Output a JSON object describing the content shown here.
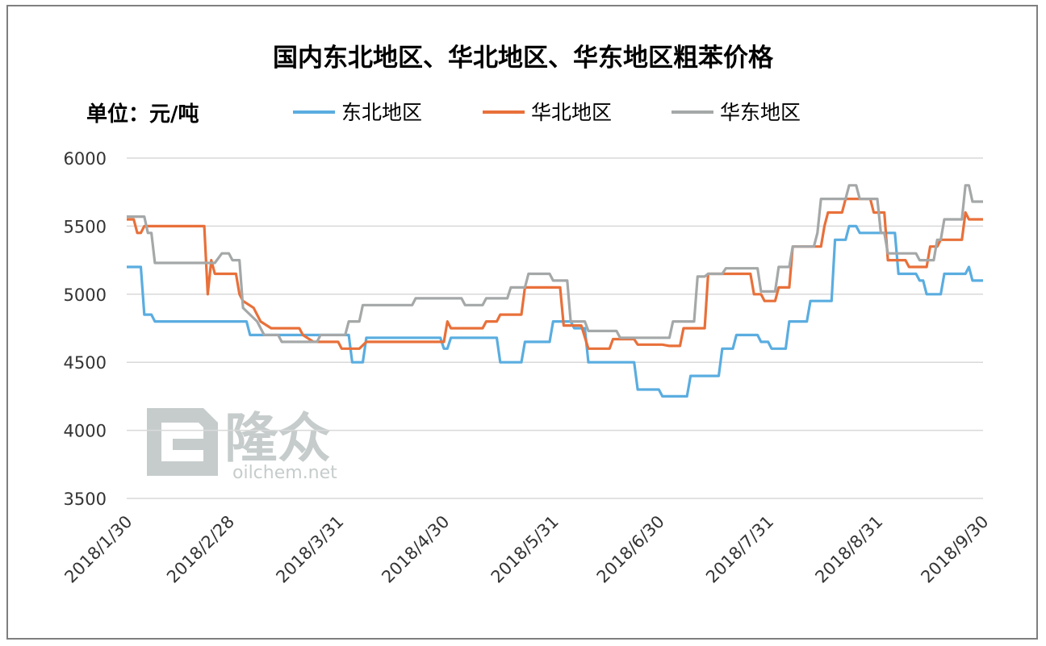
{
  "chart_data": {
    "type": "line",
    "title": "国内东北地区、华北地区、华东地区粗苯价格",
    "unit_label": "单位：元/吨",
    "xlabel": "",
    "ylabel": "",
    "ylim": [
      3500,
      6000
    ],
    "y_ticks": [
      3500,
      4000,
      4500,
      5000,
      5500,
      6000
    ],
    "x_ticks": [
      "2018/1/30",
      "2018/2/28",
      "2018/3/31",
      "2018/4/30",
      "2018/5/31",
      "2018/6/30",
      "2018/7/31",
      "2018/8/31",
      "2018/9/30"
    ],
    "legend_position": "top",
    "grid": true,
    "watermark": {
      "brand": "隆众",
      "site": "oilchem.net"
    },
    "series": [
      {
        "name": "东北地区",
        "color": "#5aade0",
        "points": [
          [
            "2018/1/30",
            5200
          ],
          [
            "2018/2/3",
            5200
          ],
          [
            "2018/2/4",
            4850
          ],
          [
            "2018/2/6",
            4850
          ],
          [
            "2018/2/7",
            4800
          ],
          [
            "2018/3/5",
            4800
          ],
          [
            "2018/3/6",
            4700
          ],
          [
            "2018/4/3",
            4700
          ],
          [
            "2018/4/4",
            4500
          ],
          [
            "2018/4/7",
            4500
          ],
          [
            "2018/4/8",
            4680
          ],
          [
            "2018/4/29",
            4680
          ],
          [
            "2018/4/30",
            4600
          ],
          [
            "2018/5/1",
            4600
          ],
          [
            "2018/5/2",
            4680
          ],
          [
            "2018/5/15",
            4680
          ],
          [
            "2018/5/16",
            4500
          ],
          [
            "2018/5/22",
            4500
          ],
          [
            "2018/5/23",
            4650
          ],
          [
            "2018/5/30",
            4650
          ],
          [
            "2018/5/31",
            4800
          ],
          [
            "2018/6/5",
            4800
          ],
          [
            "2018/6/6",
            4750
          ],
          [
            "2018/6/9",
            4750
          ],
          [
            "2018/6/10",
            4500
          ],
          [
            "2018/6/23",
            4500
          ],
          [
            "2018/6/24",
            4300
          ],
          [
            "2018/6/30",
            4300
          ],
          [
            "2018/7/1",
            4250
          ],
          [
            "2018/7/8",
            4250
          ],
          [
            "2018/7/9",
            4400
          ],
          [
            "2018/7/17",
            4400
          ],
          [
            "2018/7/18",
            4600
          ],
          [
            "2018/7/21",
            4600
          ],
          [
            "2018/7/22",
            4700
          ],
          [
            "2018/7/28",
            4700
          ],
          [
            "2018/7/29",
            4650
          ],
          [
            "2018/7/31",
            4650
          ],
          [
            "2018/8/1",
            4600
          ],
          [
            "2018/8/5",
            4600
          ],
          [
            "2018/8/6",
            4800
          ],
          [
            "2018/8/11",
            4800
          ],
          [
            "2018/8/12",
            4950
          ],
          [
            "2018/8/18",
            4950
          ],
          [
            "2018/8/19",
            5400
          ],
          [
            "2018/8/22",
            5400
          ],
          [
            "2018/8/23",
            5500
          ],
          [
            "2018/8/25",
            5500
          ],
          [
            "2018/8/26",
            5450
          ],
          [
            "2018/9/5",
            5450
          ],
          [
            "2018/9/6",
            5150
          ],
          [
            "2018/9/11",
            5150
          ],
          [
            "2018/9/12",
            5100
          ],
          [
            "2018/9/13",
            5100
          ],
          [
            "2018/9/14",
            5000
          ],
          [
            "2018/9/18",
            5000
          ],
          [
            "2018/9/19",
            5150
          ],
          [
            "2018/9/25",
            5150
          ],
          [
            "2018/9/26",
            5200
          ],
          [
            "2018/9/27",
            5100
          ],
          [
            "2018/9/30",
            5100
          ]
        ]
      },
      {
        "name": "华北地区",
        "color": "#e8703a",
        "points": [
          [
            "2018/1/30",
            5550
          ],
          [
            "2018/2/1",
            5550
          ],
          [
            "2018/2/2",
            5450
          ],
          [
            "2018/2/3",
            5450
          ],
          [
            "2018/2/4",
            5500
          ],
          [
            "2018/2/21",
            5500
          ],
          [
            "2018/2/22",
            5000
          ],
          [
            "2018/2/23",
            5250
          ],
          [
            "2018/2/24",
            5150
          ],
          [
            "2018/3/2",
            5150
          ],
          [
            "2018/3/3",
            5000
          ],
          [
            "2018/3/4",
            4950
          ],
          [
            "2018/3/7",
            4900
          ],
          [
            "2018/3/9",
            4800
          ],
          [
            "2018/3/12",
            4750
          ],
          [
            "2018/3/20",
            4750
          ],
          [
            "2018/3/21",
            4700
          ],
          [
            "2018/3/24",
            4650
          ],
          [
            "2018/3/31",
            4650
          ],
          [
            "2018/4/1",
            4600
          ],
          [
            "2018/4/6",
            4600
          ],
          [
            "2018/4/8",
            4650
          ],
          [
            "2018/4/30",
            4650
          ],
          [
            "2018/5/1",
            4800
          ],
          [
            "2018/5/2",
            4750
          ],
          [
            "2018/5/11",
            4750
          ],
          [
            "2018/5/12",
            4800
          ],
          [
            "2018/5/15",
            4800
          ],
          [
            "2018/5/16",
            4850
          ],
          [
            "2018/5/22",
            4850
          ],
          [
            "2018/5/23",
            5050
          ],
          [
            "2018/6/2",
            5050
          ],
          [
            "2018/6/3",
            4770
          ],
          [
            "2018/6/8",
            4770
          ],
          [
            "2018/6/10",
            4600
          ],
          [
            "2018/6/16",
            4600
          ],
          [
            "2018/6/17",
            4670
          ],
          [
            "2018/6/23",
            4670
          ],
          [
            "2018/6/24",
            4630
          ],
          [
            "2018/7/1",
            4630
          ],
          [
            "2018/7/3",
            4620
          ],
          [
            "2018/7/6",
            4620
          ],
          [
            "2018/7/7",
            4750
          ],
          [
            "2018/7/13",
            4750
          ],
          [
            "2018/7/14",
            5150
          ],
          [
            "2018/7/26",
            5150
          ],
          [
            "2018/7/27",
            5000
          ],
          [
            "2018/7/29",
            5000
          ],
          [
            "2018/7/30",
            4950
          ],
          [
            "2018/8/2",
            4950
          ],
          [
            "2018/8/3",
            5050
          ],
          [
            "2018/8/6",
            5050
          ],
          [
            "2018/8/7",
            5350
          ],
          [
            "2018/8/15",
            5350
          ],
          [
            "2018/8/16",
            5500
          ],
          [
            "2018/8/17",
            5600
          ],
          [
            "2018/8/21",
            5600
          ],
          [
            "2018/8/22",
            5700
          ],
          [
            "2018/8/29",
            5700
          ],
          [
            "2018/8/30",
            5600
          ],
          [
            "2018/9/2",
            5600
          ],
          [
            "2018/9/3",
            5250
          ],
          [
            "2018/9/8",
            5250
          ],
          [
            "2018/9/9",
            5200
          ],
          [
            "2018/9/14",
            5200
          ],
          [
            "2018/9/15",
            5350
          ],
          [
            "2018/9/17",
            5350
          ],
          [
            "2018/9/18",
            5400
          ],
          [
            "2018/9/24",
            5400
          ],
          [
            "2018/9/25",
            5600
          ],
          [
            "2018/9/26",
            5550
          ],
          [
            "2018/9/30",
            5550
          ]
        ]
      },
      {
        "name": "华东地区",
        "color": "#a5a8a8",
        "points": [
          [
            "2018/1/30",
            5570
          ],
          [
            "2018/2/4",
            5570
          ],
          [
            "2018/2/5",
            5450
          ],
          [
            "2018/2/6",
            5450
          ],
          [
            "2018/2/7",
            5230
          ],
          [
            "2018/2/24",
            5230
          ],
          [
            "2018/2/26",
            5300
          ],
          [
            "2018/2/28",
            5300
          ],
          [
            "2018/3/1",
            5250
          ],
          [
            "2018/3/3",
            5250
          ],
          [
            "2018/3/4",
            4900
          ],
          [
            "2018/3/6",
            4850
          ],
          [
            "2018/3/8",
            4800
          ],
          [
            "2018/3/10",
            4700
          ],
          [
            "2018/3/14",
            4700
          ],
          [
            "2018/3/15",
            4650
          ],
          [
            "2018/3/25",
            4650
          ],
          [
            "2018/3/26",
            4700
          ],
          [
            "2018/4/2",
            4700
          ],
          [
            "2018/4/3",
            4800
          ],
          [
            "2018/4/6",
            4800
          ],
          [
            "2018/4/7",
            4920
          ],
          [
            "2018/4/21",
            4920
          ],
          [
            "2018/4/22",
            4970
          ],
          [
            "2018/5/5",
            4970
          ],
          [
            "2018/5/6",
            4920
          ],
          [
            "2018/5/11",
            4920
          ],
          [
            "2018/5/12",
            4970
          ],
          [
            "2018/5/18",
            4970
          ],
          [
            "2018/5/19",
            5050
          ],
          [
            "2018/5/23",
            5050
          ],
          [
            "2018/5/24",
            5150
          ],
          [
            "2018/5/30",
            5150
          ],
          [
            "2018/5/31",
            5100
          ],
          [
            "2018/6/4",
            5100
          ],
          [
            "2018/6/5",
            4800
          ],
          [
            "2018/6/9",
            4800
          ],
          [
            "2018/6/10",
            4730
          ],
          [
            "2018/6/18",
            4730
          ],
          [
            "2018/6/19",
            4680
          ],
          [
            "2018/7/3",
            4680
          ],
          [
            "2018/7/4",
            4800
          ],
          [
            "2018/7/10",
            4800
          ],
          [
            "2018/7/11",
            5130
          ],
          [
            "2018/7/13",
            5130
          ],
          [
            "2018/7/14",
            5150
          ],
          [
            "2018/7/18",
            5150
          ],
          [
            "2018/7/19",
            5190
          ],
          [
            "2018/7/28",
            5190
          ],
          [
            "2018/7/29",
            5020
          ],
          [
            "2018/8/2",
            5020
          ],
          [
            "2018/8/3",
            5200
          ],
          [
            "2018/8/6",
            5200
          ],
          [
            "2018/8/7",
            5350
          ],
          [
            "2018/8/13",
            5350
          ],
          [
            "2018/8/14",
            5450
          ],
          [
            "2018/8/15",
            5700
          ],
          [
            "2018/8/22",
            5700
          ],
          [
            "2018/8/23",
            5800
          ],
          [
            "2018/8/25",
            5800
          ],
          [
            "2018/8/26",
            5700
          ],
          [
            "2018/8/31",
            5700
          ],
          [
            "2018/9/1",
            5450
          ],
          [
            "2018/9/2",
            5450
          ],
          [
            "2018/9/3",
            5300
          ],
          [
            "2018/9/11",
            5300
          ],
          [
            "2018/9/12",
            5250
          ],
          [
            "2018/9/16",
            5250
          ],
          [
            "2018/9/17",
            5400
          ],
          [
            "2018/9/18",
            5400
          ],
          [
            "2018/9/19",
            5550
          ],
          [
            "2018/9/24",
            5550
          ],
          [
            "2018/9/25",
            5800
          ],
          [
            "2018/9/26",
            5800
          ],
          [
            "2018/9/27",
            5680
          ],
          [
            "2018/9/30",
            5680
          ]
        ]
      }
    ]
  }
}
